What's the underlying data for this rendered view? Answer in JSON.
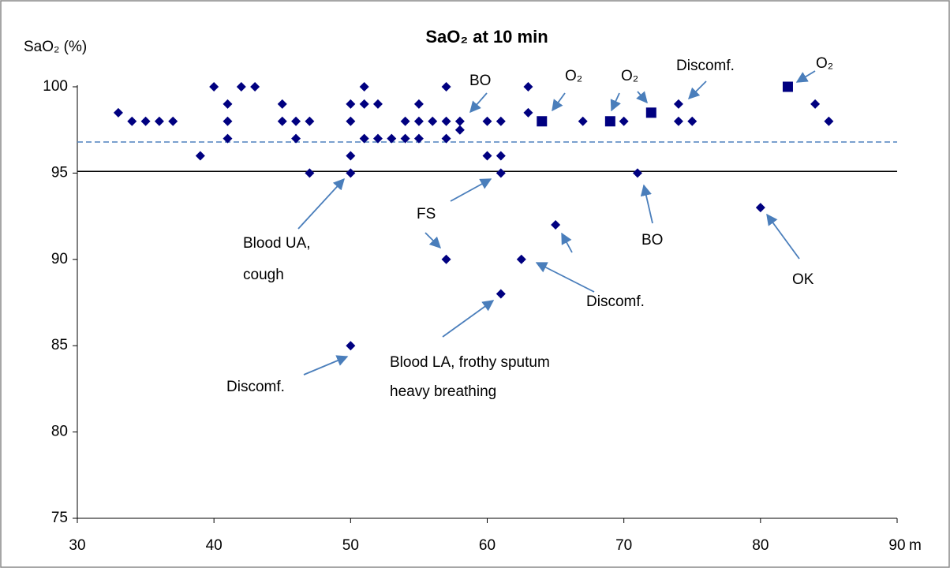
{
  "chart_data": {
    "type": "scatter",
    "title": "SaO₂ at 10 min",
    "y_label": "SaO₂ (%)",
    "x_label": "m",
    "xlim": [
      30,
      90
    ],
    "xticks": [
      30,
      40,
      50,
      60,
      70,
      80,
      90
    ],
    "ylim": [
      75,
      100
    ],
    "yticks": [
      75,
      80,
      85,
      90,
      95,
      100
    ],
    "series": [
      {
        "marker": "diamond",
        "color": "#000080",
        "x": [
          33,
          34,
          35,
          36,
          37,
          39,
          40,
          41,
          41,
          41,
          42,
          43,
          45,
          45,
          46,
          46,
          47,
          47,
          50,
          50,
          50,
          50,
          50,
          51,
          51,
          51,
          52,
          52,
          53,
          54,
          54,
          55,
          55,
          55,
          56,
          57,
          57,
          57,
          58,
          58,
          60,
          60,
          61,
          61,
          61,
          63,
          63,
          67,
          70,
          71,
          74,
          74,
          75,
          84,
          85,
          57,
          62.5,
          65,
          61,
          80
        ],
        "y": [
          98.5,
          98,
          98,
          98,
          98,
          96,
          100,
          99,
          98,
          97,
          100,
          100,
          99,
          98,
          98,
          97,
          98,
          95,
          99,
          98,
          96,
          95,
          85,
          100,
          99,
          97,
          99,
          97,
          97,
          98,
          97,
          99,
          98,
          97,
          98,
          100,
          98,
          97,
          98,
          97.5,
          98,
          96,
          98,
          96,
          95,
          100,
          98.5,
          98,
          98,
          95,
          99,
          98,
          98,
          99,
          98,
          90,
          90,
          92,
          88,
          93
        ]
      },
      {
        "marker": "square",
        "color": "#000080",
        "x": [
          64,
          69,
          72,
          82
        ],
        "y": [
          98,
          98,
          98.5,
          100
        ]
      }
    ],
    "reference_lines": [
      {
        "value": 96.8,
        "style": "dashed",
        "color": "#4f81bd"
      },
      {
        "value": 95.1,
        "style": "solid",
        "color": "#000000"
      }
    ],
    "annotations": [
      {
        "text": [
          "BO"
        ]
      },
      {
        "text": [
          "O₂"
        ]
      },
      {
        "text": [
          "O₂"
        ]
      },
      {
        "text": [
          "Discomf."
        ]
      },
      {
        "text": [
          "O₂"
        ]
      },
      {
        "text": [
          "Blood UA,",
          "cough"
        ]
      },
      {
        "text": [
          "FS"
        ]
      },
      {
        "text": [
          "BO"
        ]
      },
      {
        "text": [
          "Discomf."
        ]
      },
      {
        "text": [
          "OK"
        ]
      },
      {
        "text": [
          "Blood LA, frothy sputum",
          "heavy breathing"
        ]
      },
      {
        "text": [
          "Discomf."
        ]
      }
    ]
  }
}
